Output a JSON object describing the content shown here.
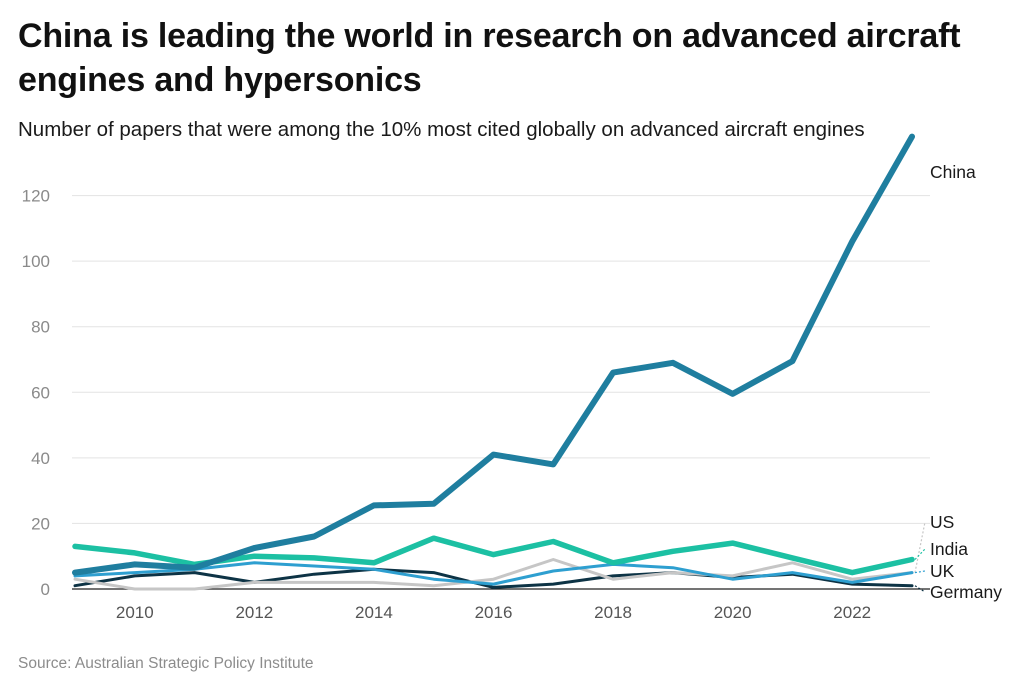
{
  "header": {
    "title": "China is leading the world in research on advanced aircraft engines and hypersonics",
    "subtitle": "Number of papers that were among the 10% most cited globally on advanced aircraft engines"
  },
  "footer": {
    "source": "Source: Australian Strategic Policy Institute"
  },
  "chart_data": {
    "type": "line",
    "title": "China is leading the world in research on advanced aircraft engines and hypersonics",
    "subtitle": "Number of papers that were among the 10% most cited globally on advanced aircraft engines",
    "xlabel": "",
    "ylabel": "",
    "x": [
      2009,
      2010,
      2011,
      2012,
      2013,
      2014,
      2015,
      2016,
      2017,
      2018,
      2019,
      2020,
      2021,
      2022,
      2023
    ],
    "xticks": [
      "2010",
      "2012",
      "2014",
      "2016",
      "2018",
      "2020",
      "2022"
    ],
    "yticks": [
      "0",
      "20",
      "40",
      "60",
      "80",
      "100",
      "120"
    ],
    "ylim": [
      0,
      140
    ],
    "grid": true,
    "legend": "direct labels at line ends",
    "series": [
      {
        "name": "Germany",
        "color": "#0d3345",
        "width": 3,
        "values": [
          1,
          4,
          5,
          2,
          4.5,
          6,
          5,
          0.5,
          1.5,
          4,
          5,
          3.5,
          4.5,
          1.5,
          1
        ]
      },
      {
        "name": "US",
        "color": "#c6c6c6",
        "width": 3,
        "values": [
          3,
          0,
          0,
          2,
          2,
          2,
          1,
          3,
          9,
          3,
          5,
          4,
          8,
          3,
          5
        ]
      },
      {
        "name": "UK",
        "color": "#2e9fd0",
        "width": 3,
        "values": [
          4,
          5,
          6,
          8,
          7,
          6,
          3,
          1.5,
          5.5,
          7.5,
          6.5,
          3,
          5,
          2,
          5
        ]
      },
      {
        "name": "India",
        "color": "#1cc0a3",
        "width": 5.5,
        "values": [
          13,
          11,
          7.5,
          10,
          9.5,
          8,
          15.5,
          10.5,
          14.5,
          8,
          11.5,
          14,
          9.5,
          5,
          9
        ]
      },
      {
        "name": "China",
        "color": "#1f7e9f",
        "width": 6,
        "values": [
          5,
          7.5,
          6.5,
          12.5,
          16,
          25.5,
          26,
          41,
          38,
          66,
          69,
          59.5,
          69.5,
          106,
          138
        ]
      }
    ],
    "end_labels": [
      "China",
      "US",
      "India",
      "UK",
      "Germany"
    ]
  }
}
